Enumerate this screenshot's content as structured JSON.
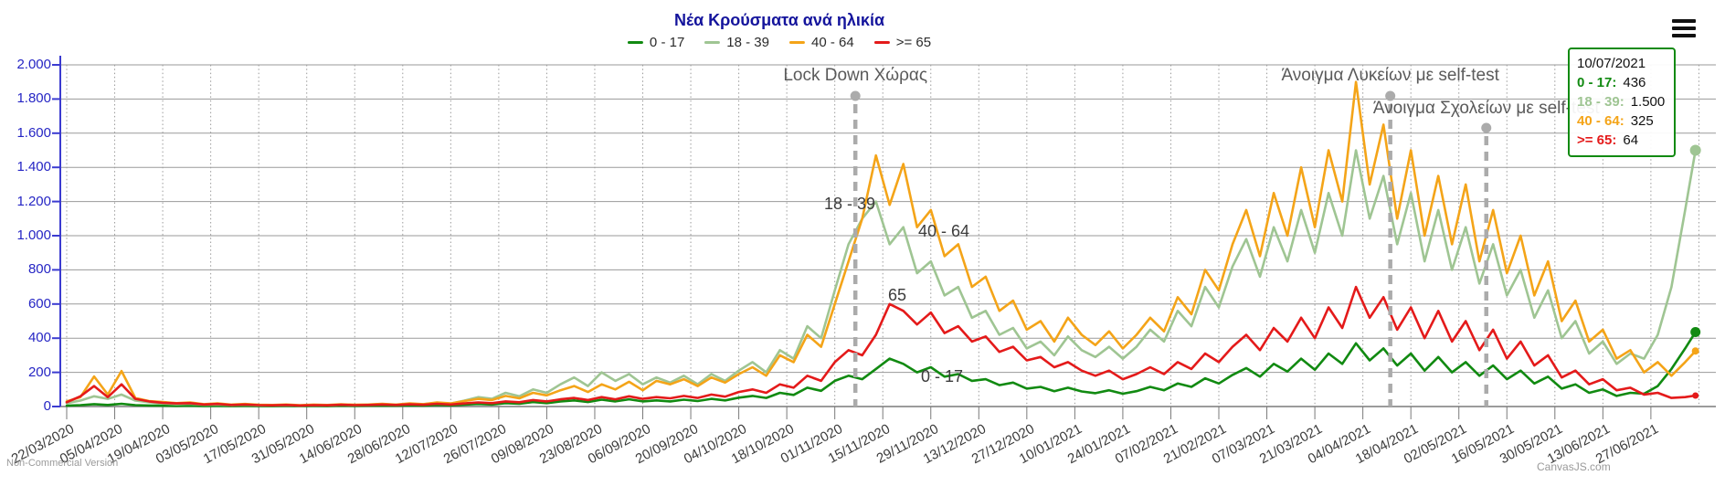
{
  "title": "Νέα Κρούσματα ανά ηλικία",
  "watermark_left": "Non-Commercial Version",
  "watermark_right": "CanvasJS.com",
  "menu_icon": "hamburger-icon",
  "legend": [
    {
      "label": "0 - 17",
      "color": "#118a11"
    },
    {
      "label": "18 - 39",
      "color": "#9fc593"
    },
    {
      "label": "40 - 64",
      "color": "#f4a418"
    },
    {
      "label": ">= 65",
      "color": "#e41a1a"
    }
  ],
  "tooltip": {
    "date": "10/07/2021",
    "rows": [
      {
        "label": "0 - 17:",
        "value": "436",
        "color": "#118a11"
      },
      {
        "label": "18 - 39:",
        "value": "1.500",
        "color": "#9fc593"
      },
      {
        "label": "40 - 64:",
        "value": "325",
        "color": "#f4a418"
      },
      {
        "label": ">= 65:",
        "value": "64",
        "color": "#e41a1a"
      }
    ]
  },
  "chart_data": {
    "type": "line",
    "ylabel": "",
    "xlabel": "",
    "ylim": [
      0,
      2000
    ],
    "grid": true,
    "legend_position": "top",
    "y_tick_labels": [
      "0",
      "200",
      "400",
      "600",
      "800",
      "1.000",
      "1.200",
      "1.400",
      "1.600",
      "1.800",
      "2.000"
    ],
    "x_tick_labels": [
      "22/03/2020",
      "05/04/2020",
      "19/04/2020",
      "03/05/2020",
      "17/05/2020",
      "31/05/2020",
      "14/06/2020",
      "28/06/2020",
      "12/07/2020",
      "26/07/2020",
      "09/08/2020",
      "23/08/2020",
      "06/09/2020",
      "20/09/2020",
      "04/10/2020",
      "18/10/2020",
      "01/11/2020",
      "15/11/2020",
      "29/11/2020",
      "13/12/2020",
      "27/12/2020",
      "10/01/2021",
      "24/01/2021",
      "07/02/2021",
      "21/02/2021",
      "07/03/2021",
      "21/03/2021",
      "04/04/2021",
      "18/04/2021",
      "02/05/2021",
      "16/05/2021",
      "30/05/2021",
      "13/06/2021",
      "27/06/2021"
    ],
    "x_tick_interval_days": 14,
    "days": [
      0,
      4,
      8,
      12,
      16,
      20,
      24,
      28,
      32,
      36,
      40,
      44,
      48,
      52,
      56,
      60,
      64,
      68,
      72,
      76,
      80,
      84,
      88,
      92,
      96,
      100,
      104,
      108,
      112,
      116,
      120,
      124,
      128,
      132,
      136,
      140,
      144,
      148,
      152,
      156,
      160,
      164,
      168,
      172,
      176,
      180,
      184,
      188,
      192,
      196,
      200,
      204,
      208,
      212,
      216,
      220,
      224,
      228,
      232,
      236,
      240,
      244,
      248,
      252,
      256,
      260,
      264,
      268,
      272,
      276,
      280,
      284,
      288,
      292,
      296,
      300,
      304,
      308,
      312,
      316,
      320,
      324,
      328,
      332,
      336,
      340,
      344,
      348,
      352,
      356,
      360,
      364,
      368,
      372,
      376,
      380,
      384,
      388,
      392,
      396,
      400,
      404,
      408,
      412,
      416,
      420,
      424,
      428,
      432,
      436,
      440,
      444,
      448,
      452,
      456,
      460,
      464,
      468,
      472,
      475
    ],
    "series": [
      {
        "name": "0 - 17",
        "color": "#118a11",
        "marker_r": 5.5,
        "values": [
          5,
          8,
          14,
          9,
          16,
          8,
          6,
          5,
          4,
          5,
          3,
          4,
          3,
          4,
          3,
          3,
          4,
          3,
          4,
          3,
          5,
          4,
          5,
          6,
          5,
          7,
          6,
          9,
          7,
          11,
          15,
          12,
          20,
          16,
          26,
          20,
          30,
          36,
          26,
          40,
          30,
          42,
          30,
          36,
          30,
          40,
          32,
          45,
          36,
          52,
          62,
          50,
          80,
          68,
          110,
          92,
          150,
          180,
          160,
          220,
          280,
          250,
          200,
          230,
          175,
          190,
          150,
          160,
          125,
          140,
          105,
          115,
          90,
          110,
          88,
          78,
          95,
          75,
          90,
          115,
          95,
          135,
          115,
          165,
          135,
          185,
          225,
          175,
          250,
          205,
          280,
          215,
          310,
          250,
          370,
          270,
          340,
          240,
          310,
          210,
          290,
          200,
          260,
          180,
          240,
          160,
          210,
          135,
          175,
          105,
          130,
          80,
          100,
          62,
          80,
          75,
          120,
          220,
          340,
          436
        ]
      },
      {
        "name": "18 - 39",
        "color": "#9fc593",
        "marker_r": 6,
        "values": [
          20,
          35,
          60,
          45,
          70,
          35,
          25,
          18,
          14,
          16,
          10,
          12,
          8,
          10,
          7,
          7,
          9,
          6,
          8,
          7,
          10,
          8,
          11,
          14,
          10,
          16,
          13,
          22,
          17,
          35,
          55,
          45,
          80,
          60,
          100,
          80,
          130,
          170,
          120,
          200,
          150,
          190,
          130,
          170,
          140,
          180,
          130,
          190,
          150,
          210,
          260,
          200,
          330,
          280,
          470,
          400,
          680,
          950,
          1100,
          1200,
          950,
          1050,
          780,
          850,
          650,
          700,
          520,
          560,
          420,
          460,
          340,
          380,
          300,
          410,
          330,
          290,
          350,
          280,
          350,
          450,
          380,
          560,
          470,
          700,
          580,
          820,
          980,
          760,
          1050,
          850,
          1150,
          900,
          1250,
          1000,
          1500,
          1100,
          1350,
          950,
          1250,
          850,
          1150,
          800,
          1050,
          720,
          950,
          650,
          800,
          520,
          680,
          400,
          500,
          310,
          380,
          250,
          310,
          280,
          420,
          700,
          1150,
          1500
        ]
      },
      {
        "name": "40 - 64",
        "color": "#f4a418",
        "marker_r": 4,
        "values": [
          30,
          55,
          176,
          70,
          208,
          50,
          32,
          26,
          20,
          24,
          14,
          18,
          11,
          15,
          10,
          9,
          12,
          8,
          11,
          9,
          13,
          10,
          12,
          16,
          11,
          18,
          14,
          24,
          18,
          32,
          45,
          38,
          62,
          48,
          80,
          65,
          95,
          120,
          85,
          130,
          100,
          145,
          95,
          150,
          130,
          160,
          120,
          170,
          140,
          190,
          230,
          180,
          300,
          260,
          420,
          350,
          600,
          850,
          1100,
          1470,
          1180,
          1420,
          1050,
          1150,
          880,
          950,
          700,
          760,
          560,
          620,
          450,
          500,
          380,
          520,
          420,
          360,
          440,
          340,
          420,
          520,
          440,
          640,
          540,
          800,
          680,
          950,
          1150,
          880,
          1250,
          1000,
          1400,
          1050,
          1500,
          1200,
          1900,
          1300,
          1650,
          1100,
          1500,
          1000,
          1350,
          950,
          1300,
          850,
          1150,
          780,
          1000,
          650,
          850,
          500,
          620,
          380,
          450,
          280,
          330,
          200,
          260,
          180,
          260,
          325
        ]
      },
      {
        "name": ">= 65",
        "color": "#e41a1a",
        "marker_r": 3.5,
        "values": [
          25,
          60,
          120,
          55,
          130,
          45,
          30,
          22,
          18,
          20,
          12,
          15,
          9,
          12,
          8,
          7,
          9,
          6,
          8,
          7,
          10,
          8,
          9,
          12,
          9,
          13,
          10,
          16,
          12,
          18,
          24,
          20,
          30,
          25,
          38,
          30,
          42,
          50,
          38,
          55,
          42,
          60,
          45,
          55,
          48,
          62,
          50,
          70,
          58,
          85,
          100,
          80,
          130,
          110,
          180,
          150,
          260,
          330,
          300,
          420,
          600,
          560,
          480,
          550,
          430,
          470,
          380,
          410,
          320,
          350,
          270,
          290,
          230,
          260,
          210,
          180,
          210,
          160,
          190,
          230,
          190,
          260,
          220,
          310,
          260,
          350,
          420,
          330,
          460,
          380,
          520,
          400,
          580,
          460,
          700,
          520,
          640,
          450,
          580,
          400,
          560,
          380,
          500,
          330,
          450,
          280,
          380,
          240,
          300,
          170,
          210,
          130,
          160,
          95,
          110,
          70,
          80,
          50,
          55,
          64
        ]
      }
    ],
    "annotations": [
      {
        "text": "Lock Down Χώρας",
        "day": 230,
        "dot_y": 105,
        "text_y": 72
      },
      {
        "text": "Άνοιγμα Λυκείων με self-test",
        "day": 386,
        "dot_y": 105,
        "text_y": 72
      },
      {
        "text": "Άνοιγμα Σχολείων με self-test",
        "day": 414,
        "dot_y": 140,
        "text_y": 108
      }
    ],
    "series_labels": [
      {
        "text": "18 - 39",
        "x": 930,
        "y": 213
      },
      {
        "text": "40 - 64",
        "x": 1033,
        "y": 243
      },
      {
        "text": "65",
        "x": 982,
        "y": 313
      },
      {
        "text": "0 - 17",
        "x": 1031,
        "y": 402
      }
    ]
  }
}
